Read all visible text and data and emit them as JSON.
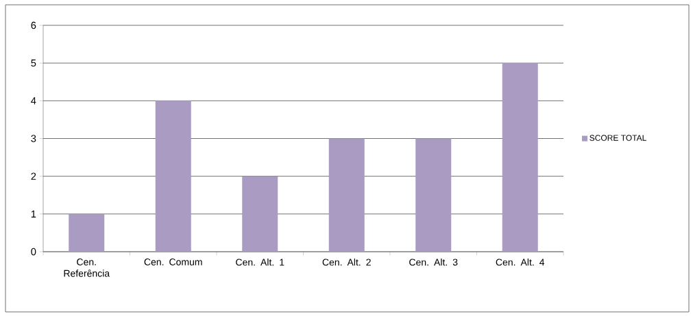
{
  "chart_data": {
    "type": "bar",
    "categories": [
      "Cen. Referência",
      "Cen. Comum",
      "Cen. Alt. 1",
      "Cen. Alt. 2",
      "Cen. Alt. 3",
      "Cen. Alt. 4"
    ],
    "series": [
      {
        "name": "SCORE TOTAL",
        "color": "#a99bc2",
        "values": [
          1,
          4,
          2,
          3,
          3,
          5
        ]
      }
    ],
    "ylim": [
      0,
      6
    ],
    "yticks": [
      0,
      1,
      2,
      3,
      4,
      5,
      6
    ],
    "grid": "y",
    "legend": "right"
  }
}
